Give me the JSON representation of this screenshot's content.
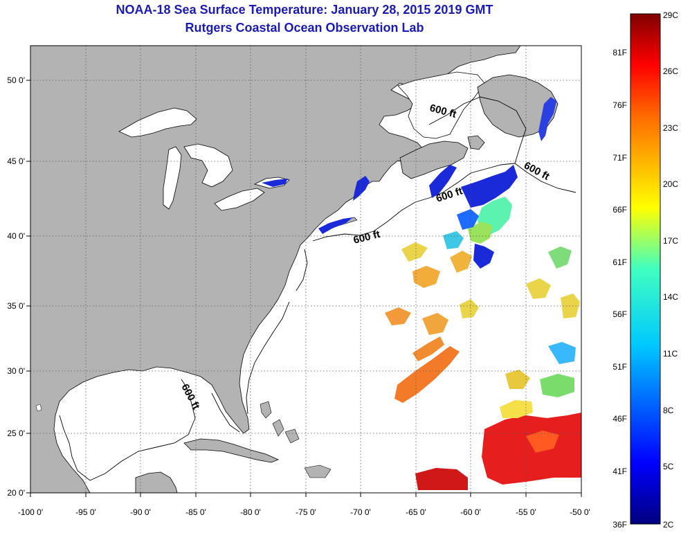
{
  "header": {
    "title_line1": "NOAA-18 Sea Surface Temperature:  January 28, 2015 2019 GMT",
    "title_line2": "Rutgers Coastal Ocean Observation Lab"
  },
  "map": {
    "lon_labels": [
      "-100 0'",
      "-95 0'",
      "-90 0'",
      "-85 0'",
      "-80 0'",
      "-75 0'",
      "-70 0'",
      "-65 0'",
      "-60 0'",
      "-55 0'",
      "-50 0'"
    ],
    "lat_labels": [
      "50 0'",
      "45 0'",
      "40 0'",
      "35 0'",
      "30 0'",
      "25 0'",
      "20 0'"
    ],
    "contour_labels": [
      "600 ft",
      "600 ft",
      "600 ft",
      "600 ft",
      "600 ft"
    ],
    "colors": {
      "land": "#b3b3b3",
      "ocean": "#ffffff",
      "grid": "#555555"
    }
  },
  "colorbar": {
    "left_labels": [
      "81F",
      "76F",
      "71F",
      "66F",
      "61F",
      "56F",
      "51F",
      "46F",
      "41F",
      "36F"
    ],
    "right_labels": [
      "29C",
      "26C",
      "23C",
      "20C",
      "17C",
      "14C",
      "11C",
      "8C",
      "5C",
      "2C"
    ],
    "colormap": "jet"
  }
}
